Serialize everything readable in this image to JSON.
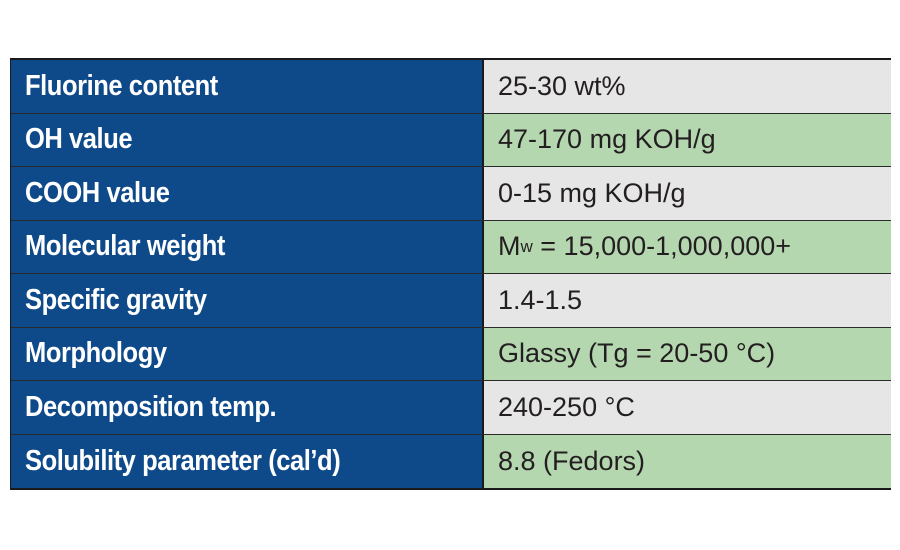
{
  "table": {
    "rows": [
      {
        "property": "Fluorine content",
        "value": "25-30 wt%",
        "shade": "gray"
      },
      {
        "property": "OH value",
        "value": "47-170 mg KOH/g",
        "shade": "green"
      },
      {
        "property": "COOH value",
        "value": "0-15 mg KOH/g",
        "shade": "gray"
      },
      {
        "property": "Molecular weight",
        "value_symbol": "M",
        "value_subscript": "w",
        "value_rest": " = 15,000-1,000,000+",
        "shade": "green"
      },
      {
        "property": "Specific gravity",
        "value": "1.4-1.5",
        "shade": "gray"
      },
      {
        "property": "Morphology",
        "value": "Glassy (Tg = 20-50 °C)",
        "shade": "green"
      },
      {
        "property": "Decomposition temp.",
        "value": "240-250 °C",
        "shade": "gray"
      },
      {
        "property": "Solubility parameter (cal’d)",
        "value": "8.8 (Fedors)",
        "shade": "green"
      }
    ]
  },
  "colors": {
    "label_bg": "#0e4a8a",
    "value_gray": "#e6e6e6",
    "value_green": "#b5d7b0"
  }
}
